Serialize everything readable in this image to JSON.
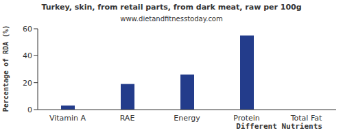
{
  "chart_data": {
    "type": "bar",
    "title": "Turkey, skin, from retail parts, from dark meat, raw per 100g",
    "subtitle": "www.dietandfitnesstoday.com",
    "x_label": "Different Nutrients",
    "y_label": "Percentage of RDA (%)",
    "categories": [
      "Vitamin A",
      "RAE",
      "Energy",
      "Protein",
      "Total Fat"
    ],
    "values": [
      3,
      19,
      26,
      55,
      0
    ],
    "color": "#233c8b",
    "ylim": [
      0,
      60
    ],
    "yticks": [
      0,
      20,
      40,
      60
    ],
    "grid": false
  }
}
